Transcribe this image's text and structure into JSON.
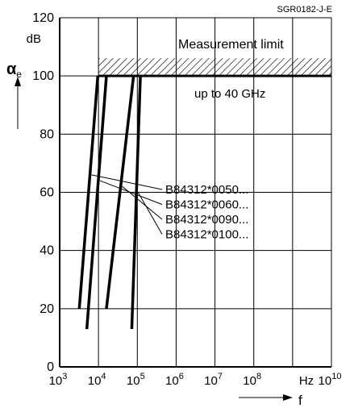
{
  "chart_data": {
    "type": "line",
    "figure_id": "SGR0182-J-E",
    "y_unit": "dB",
    "x_unit": "Hz",
    "ylabel_main": "α",
    "ylabel_sub": "e",
    "xlabel": "f",
    "x_scale": "log",
    "xlim": [
      1000,
      10000000000
    ],
    "ylim": [
      0,
      120
    ],
    "grid": true,
    "y_ticks": [
      "0",
      "20",
      "40",
      "60",
      "80",
      "100",
      "120"
    ],
    "x_ticks": [
      {
        "base": "10",
        "exp": "3",
        "value": 1000
      },
      {
        "base": "10",
        "exp": "4",
        "value": 10000
      },
      {
        "base": "10",
        "exp": "5",
        "value": 100000
      },
      {
        "base": "10",
        "exp": "6",
        "value": 1000000
      },
      {
        "base": "10",
        "exp": "7",
        "value": 10000000
      },
      {
        "base": "10",
        "exp": "8",
        "value": 100000000
      },
      {
        "base": "10",
        "exp": "10",
        "value": 10000000000
      }
    ],
    "annotations": {
      "measurement_limit": "Measurement limit",
      "upper_range": "up to 40 GHz",
      "limit_db": 100,
      "limit_from_hz": 10000
    },
    "series": [
      {
        "name": "B84312*0050...",
        "points": [
          [
            3200,
            20
          ],
          [
            9600,
            100
          ]
        ]
      },
      {
        "name": "B84312*0060...",
        "points": [
          [
            5000,
            13
          ],
          [
            16000,
            100
          ]
        ]
      },
      {
        "name": "B84312*0090...",
        "points": [
          [
            16000,
            20
          ],
          [
            80000,
            100
          ]
        ]
      },
      {
        "name": "B84312*0100...",
        "points": [
          [
            72000,
            13
          ],
          [
            120000,
            100
          ]
        ]
      }
    ],
    "legend_placement": "right-center"
  }
}
